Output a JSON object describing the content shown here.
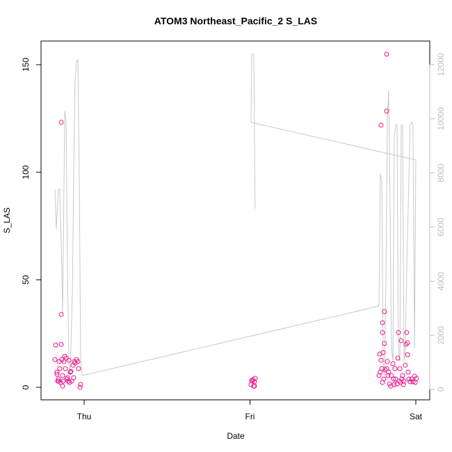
{
  "chart_data": {
    "type": "scatter",
    "title": "ATOM3 Northeast_Pacific_2 S_LAS",
    "xlabel": "Date",
    "ylabel": "S_LAS",
    "xlim": [
      -0.26,
      2.084
    ],
    "ylim": [
      -5.8,
      161
    ],
    "y2lim": [
      -385,
      12873
    ],
    "xticks": [
      {
        "value": 0,
        "label": "Thu"
      },
      {
        "value": 1,
        "label": "Fri"
      },
      {
        "value": 2,
        "label": "Sat"
      }
    ],
    "yticks": [
      0,
      50,
      100,
      150
    ],
    "y2ticks": [
      0,
      2000,
      4000,
      6000,
      8000,
      10000,
      12000
    ],
    "y2color": "#bebebe",
    "series": [
      {
        "type": "line",
        "axis": "y2",
        "color": "#c8c8c8",
        "x": [
          -0.176,
          -0.168,
          -0.155,
          -0.147,
          -0.138,
          -0.13,
          -0.117,
          -0.109,
          -0.101,
          -0.092,
          -0.084,
          -0.071,
          -0.063,
          -0.055,
          -0.046,
          -0.038,
          -0.029,
          -0.021,
          -0.013,
          1.778,
          1.786,
          1.795,
          1.803,
          1.811,
          1.82,
          1.828,
          1.836,
          1.845,
          1.853,
          1.862,
          1.87,
          1.878,
          1.887,
          1.895,
          1.904,
          1.912,
          1.92,
          1.929,
          1.937,
          1.945,
          1.954,
          1.966,
          1.975,
          1.983,
          1.992,
          2.0,
          1.006,
          1.01,
          1.023,
          1.031
        ],
        "values": [
          7380,
          5910,
          7400,
          7400,
          5400,
          2830,
          10280,
          9900,
          4630,
          1030,
          510,
          3600,
          7970,
          11360,
          12130,
          12180,
          7710,
          1030,
          510,
          3080,
          7970,
          7660,
          1030,
          510,
          4110,
          10020,
          11050,
          6680,
          1540,
          1030,
          9250,
          9770,
          9770,
          1540,
          1030,
          9770,
          9770,
          1030,
          1540,
          4370,
          6680,
          9770,
          9870,
          9770,
          1540,
          8480,
          9870,
          12390,
          12390,
          6680
        ]
      },
      {
        "type": "scatter",
        "color": "#ee1289",
        "x": [
          -0.172,
          -0.176,
          -0.164,
          -0.164,
          -0.159,
          -0.155,
          -0.151,
          -0.147,
          -0.138,
          -0.138,
          -0.138,
          -0.134,
          -0.13,
          -0.13,
          -0.122,
          -0.117,
          -0.113,
          -0.109,
          -0.105,
          -0.096,
          -0.092,
          -0.088,
          -0.084,
          -0.08,
          -0.075,
          -0.067,
          -0.059,
          -0.055,
          -0.046,
          -0.038,
          -0.034,
          -0.025,
          -0.021,
          -0.155,
          -0.143,
          -0.126,
          -0.101,
          -0.063,
          1.006,
          1.015,
          1.019,
          1.027,
          1.023,
          1.027,
          1.031,
          1.01,
          1.79,
          1.824,
          1.824,
          1.811,
          1.799,
          1.799,
          1.811,
          1.803,
          1.782,
          1.79,
          1.778,
          1.786,
          1.795,
          1.799,
          1.807,
          1.816,
          1.824,
          1.832,
          1.841,
          1.849,
          1.853,
          1.862,
          1.866,
          1.874,
          1.878,
          1.887,
          1.891,
          1.895,
          1.904,
          1.908,
          1.916,
          1.92,
          1.929,
          1.937,
          1.941,
          1.945,
          1.95,
          1.95,
          1.954,
          1.958,
          1.966,
          1.975,
          1.983,
          1.992,
          1.996,
          2.004,
          1.912,
          1.828,
          1.836,
          1.87,
          1.899,
          1.925
        ],
        "values": [
          19.7,
          12.9,
          7.1,
          6.1,
          2.9,
          3.9,
          12,
          8.7,
          123.2,
          33.9,
          20,
          12.9,
          0.6,
          5.5,
          12,
          14.5,
          8.7,
          13.6,
          3.9,
          2.9,
          12.6,
          2.3,
          7.1,
          7.4,
          2.9,
          10.3,
          12,
          11.3,
          12.9,
          12,
          8.7,
          0,
          1.3,
          2.9,
          2.3,
          2.9,
          4.5,
          4.5,
          1.3,
          2.9,
          3.6,
          2.6,
          0.6,
          0.6,
          4.2,
          3.2,
          121.9,
          154.9,
          128.4,
          35.2,
          30.1,
          25.5,
          20.4,
          16.2,
          15.5,
          12.6,
          5.5,
          7.1,
          8.7,
          2.3,
          3.9,
          8.1,
          8.7,
          5.5,
          1.6,
          0.6,
          5.5,
          11,
          3.9,
          8.7,
          3.9,
          1.6,
          13.6,
          25.5,
          8.7,
          2.3,
          3.9,
          5.5,
          2.9,
          10.3,
          20,
          25.5,
          20.7,
          15.2,
          7.1,
          3.9,
          2.6,
          3.9,
          2.6,
          5.2,
          2.3,
          4.2,
          21.7,
          12,
          7.1,
          1.3,
          2.9,
          1.3
        ]
      }
    ]
  }
}
